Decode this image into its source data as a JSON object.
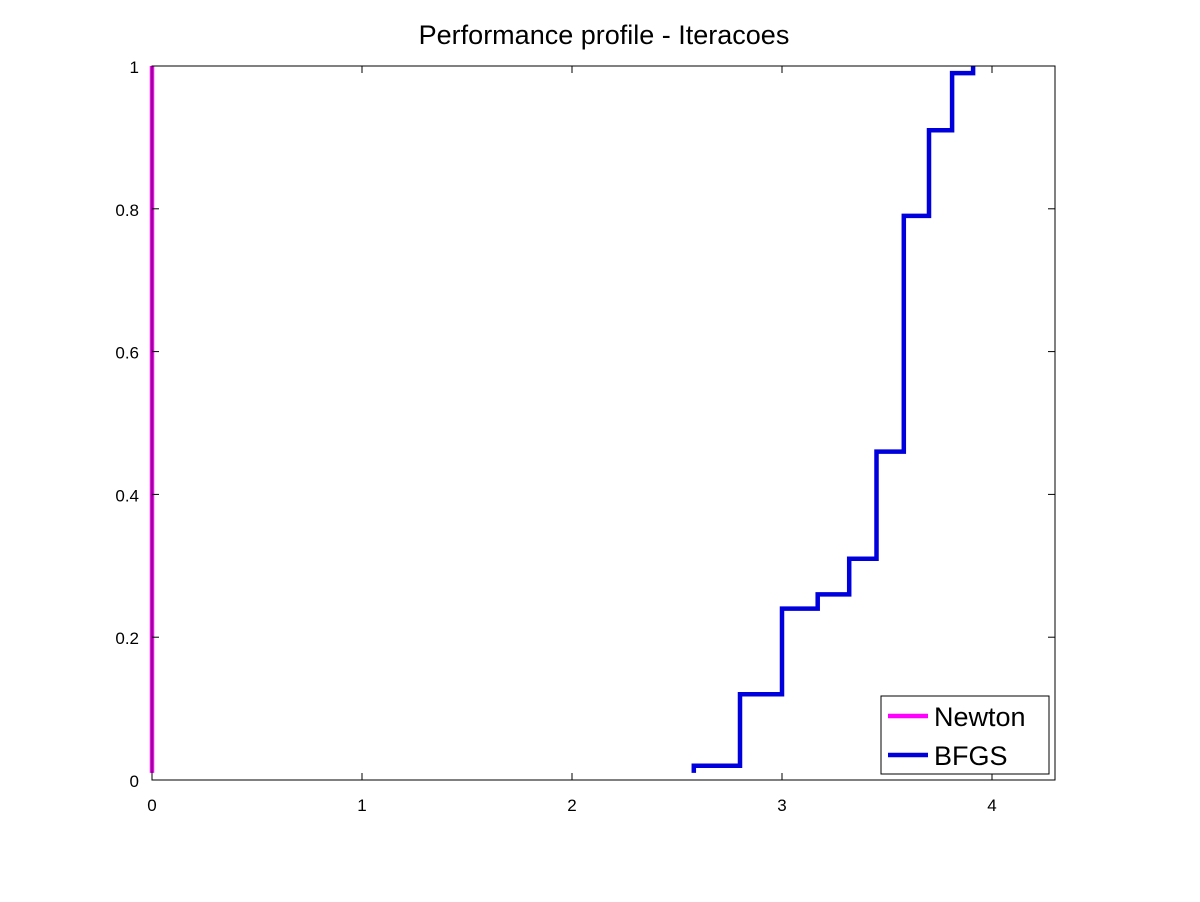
{
  "chart_data": {
    "type": "line",
    "step": true,
    "title": "Performance profile - Iteracoes",
    "xlabel": "",
    "ylabel": "",
    "xlim": [
      0,
      4.3
    ],
    "ylim": [
      0,
      1
    ],
    "x_ticks": [
      0,
      1,
      2,
      3,
      4
    ],
    "x_tick_labels": [
      "0",
      "1",
      "2",
      "3",
      "4"
    ],
    "y_ticks": [
      0,
      0.2,
      0.4,
      0.6,
      0.8,
      1
    ],
    "y_tick_labels": [
      "0",
      "0.2",
      "0.4",
      "0.6",
      "0.8",
      "1"
    ],
    "grid": false,
    "legend_position": "bottom-right",
    "series": [
      {
        "name": "Newton",
        "color": "#ff00ff",
        "points": [
          [
            0,
            0.01
          ],
          [
            0,
            1
          ]
        ]
      },
      {
        "name": "BFGS",
        "color": "#0000dd",
        "points": [
          [
            2.58,
            0.01
          ],
          [
            2.58,
            0.02
          ],
          [
            2.8,
            0.02
          ],
          [
            2.8,
            0.12
          ],
          [
            3.0,
            0.12
          ],
          [
            3.0,
            0.24
          ],
          [
            3.17,
            0.24
          ],
          [
            3.17,
            0.26
          ],
          [
            3.32,
            0.26
          ],
          [
            3.32,
            0.31
          ],
          [
            3.45,
            0.31
          ],
          [
            3.45,
            0.46
          ],
          [
            3.58,
            0.46
          ],
          [
            3.58,
            0.79
          ],
          [
            3.7,
            0.79
          ],
          [
            3.7,
            0.91
          ],
          [
            3.81,
            0.91
          ],
          [
            3.81,
            0.99
          ],
          [
            3.91,
            0.99
          ],
          [
            3.91,
            1.0
          ]
        ]
      }
    ]
  }
}
